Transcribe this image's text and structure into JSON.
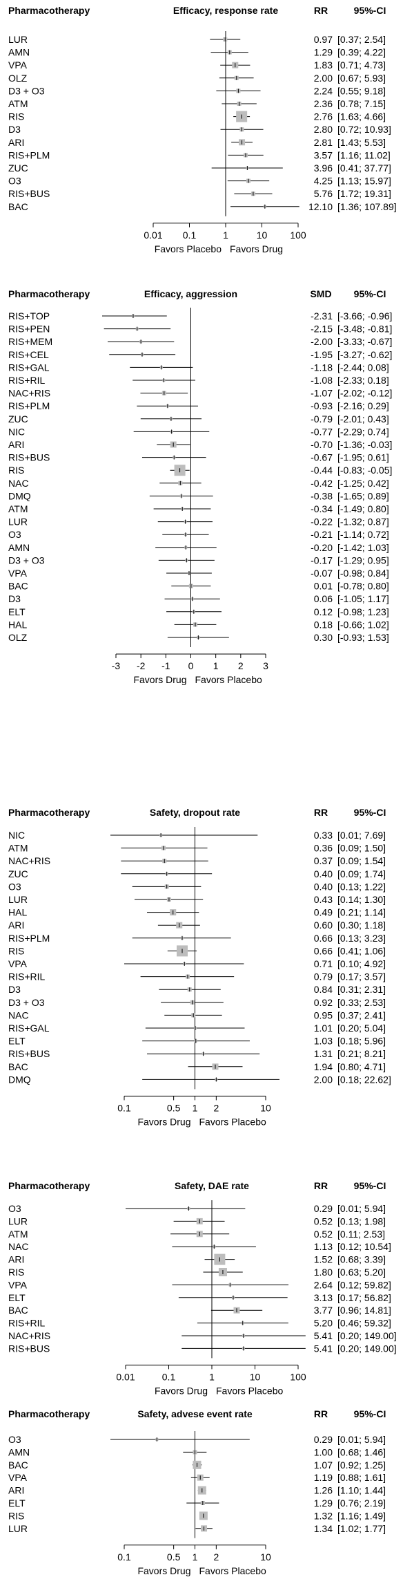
{
  "chart_data": [
    {
      "type": "forest",
      "title": "Efficacy, response rate",
      "columns": {
        "label": "Pharmacotherapy",
        "title": "Efficacy, response rate",
        "estimate": "RR",
        "ci": "95%-CI"
      },
      "scale": "log",
      "null_value": 1,
      "ticks": [
        0.01,
        0.1,
        1,
        10,
        100
      ],
      "tick_labels": [
        "0.01",
        "0.1",
        "1",
        "10",
        "100"
      ],
      "favors": [
        "Favors Placebo",
        "Favors Drug"
      ],
      "rows": [
        {
          "label": "LUR",
          "est": 0.97,
          "lo": 0.37,
          "hi": 2.54,
          "est_text": "0.97",
          "ci_text": "[0.37;  2.54]",
          "w": 1
        },
        {
          "label": "AMN",
          "est": 1.29,
          "lo": 0.39,
          "hi": 4.22,
          "est_text": "1.29",
          "ci_text": "[0.39;  4.22]",
          "w": 1
        },
        {
          "label": "VPA",
          "est": 1.83,
          "lo": 0.71,
          "hi": 4.73,
          "est_text": "1.83",
          "ci_text": "[0.71;  4.73]",
          "w": 2
        },
        {
          "label": "OLZ",
          "est": 2.0,
          "lo": 0.67,
          "hi": 5.93,
          "est_text": "2.00",
          "ci_text": "[0.67;  5.93]",
          "w": 1
        },
        {
          "label": "D3 + O3",
          "est": 2.24,
          "lo": 0.55,
          "hi": 9.18,
          "est_text": "2.24",
          "ci_text": "[0.55;  9.18]",
          "w": 1
        },
        {
          "label": "ATM",
          "est": 2.36,
          "lo": 0.78,
          "hi": 7.15,
          "est_text": "2.36",
          "ci_text": "[0.78;  7.15]",
          "w": 1
        },
        {
          "label": "RIS",
          "est": 2.76,
          "lo": 1.63,
          "hi": 4.66,
          "est_text": "2.76",
          "ci_text": "[1.63;  4.66]",
          "w": 4
        },
        {
          "label": "D3",
          "est": 2.8,
          "lo": 0.72,
          "hi": 10.93,
          "est_text": "2.80",
          "ci_text": "[0.72; 10.93]",
          "w": 1
        },
        {
          "label": "ARI",
          "est": 2.81,
          "lo": 1.43,
          "hi": 5.53,
          "est_text": "2.81",
          "ci_text": "[1.43;  5.53]",
          "w": 2
        },
        {
          "label": "RIS+PLM",
          "est": 3.57,
          "lo": 1.16,
          "hi": 11.02,
          "est_text": "3.57",
          "ci_text": "[1.16; 11.02]",
          "w": 1
        },
        {
          "label": "ZUC",
          "est": 3.96,
          "lo": 0.41,
          "hi": 37.77,
          "est_text": "3.96",
          "ci_text": "[0.41; 37.77]",
          "w": 0
        },
        {
          "label": "O3",
          "est": 4.25,
          "lo": 1.13,
          "hi": 15.97,
          "est_text": "4.25",
          "ci_text": "[1.13; 15.97]",
          "w": 1
        },
        {
          "label": "RIS+BUS",
          "est": 5.76,
          "lo": 1.72,
          "hi": 19.31,
          "est_text": "5.76",
          "ci_text": "[1.72; 19.31]",
          "w": 1
        },
        {
          "label": "BAC",
          "est": 12.1,
          "lo": 1.36,
          "hi": 107.89,
          "est_text": "12.10",
          "ci_text": "[1.36; 107.89]",
          "w": 0
        }
      ]
    },
    {
      "type": "forest",
      "title": "Efficacy, aggression",
      "columns": {
        "label": "Pharmacotherapy",
        "title": "Efficacy, aggression",
        "estimate": "SMD",
        "ci": "95%-CI"
      },
      "scale": "linear",
      "null_value": 0,
      "ticks": [
        -3,
        -2,
        -1,
        0,
        1,
        2,
        3
      ],
      "tick_labels": [
        "-3",
        "-2",
        "-1",
        "0",
        "1",
        "2",
        "3"
      ],
      "favors": [
        "Favors Drug",
        "Favors Placebo"
      ],
      "rows": [
        {
          "label": "RIS+TOP",
          "est": -2.31,
          "lo": -3.66,
          "hi": -0.96,
          "est_text": "-2.31",
          "ci_text": "[-3.66; -0.96]",
          "w": 0
        },
        {
          "label": "RIS+PEN",
          "est": -2.15,
          "lo": -3.48,
          "hi": -0.81,
          "est_text": "-2.15",
          "ci_text": "[-3.48; -0.81]",
          "w": 0
        },
        {
          "label": "RIS+MEM",
          "est": -2.0,
          "lo": -3.33,
          "hi": -0.67,
          "est_text": "-2.00",
          "ci_text": "[-3.33; -0.67]",
          "w": 0
        },
        {
          "label": "RIS+CEL",
          "est": -1.95,
          "lo": -3.27,
          "hi": -0.62,
          "est_text": "-1.95",
          "ci_text": "[-3.27; -0.62]",
          "w": 0
        },
        {
          "label": "RIS+GAL",
          "est": -1.18,
          "lo": -2.44,
          "hi": 0.08,
          "est_text": "-1.18",
          "ci_text": "[-2.44;  0.08]",
          "w": 0
        },
        {
          "label": "RIS+RIL",
          "est": -1.08,
          "lo": -2.33,
          "hi": 0.18,
          "est_text": "-1.08",
          "ci_text": "[-2.33;  0.18]",
          "w": 0
        },
        {
          "label": "NAC+RIS",
          "est": -1.07,
          "lo": -2.02,
          "hi": -0.12,
          "est_text": "-1.07",
          "ci_text": "[-2.02; -0.12]",
          "w": 1
        },
        {
          "label": "RIS+PLM",
          "est": -0.93,
          "lo": -2.16,
          "hi": 0.29,
          "est_text": "-0.93",
          "ci_text": "[-2.16;  0.29]",
          "w": 0
        },
        {
          "label": "ZUC",
          "est": -0.79,
          "lo": -2.01,
          "hi": 0.43,
          "est_text": "-0.79",
          "ci_text": "[-2.01;  0.43]",
          "w": 0
        },
        {
          "label": "NIC",
          "est": -0.77,
          "lo": -2.29,
          "hi": 0.74,
          "est_text": "-0.77",
          "ci_text": "[-2.29;  0.74]",
          "w": 0
        },
        {
          "label": "ARI",
          "est": -0.7,
          "lo": -1.36,
          "hi": -0.03,
          "est_text": "-0.70",
          "ci_text": "[-1.36; -0.03]",
          "w": 2
        },
        {
          "label": "RIS+BUS",
          "est": -0.67,
          "lo": -1.95,
          "hi": 0.61,
          "est_text": "-0.67",
          "ci_text": "[-1.95;  0.61]",
          "w": 0
        },
        {
          "label": "RIS",
          "est": -0.44,
          "lo": -0.83,
          "hi": -0.05,
          "est_text": "-0.44",
          "ci_text": "[-0.83; -0.05]",
          "w": 4
        },
        {
          "label": "NAC",
          "est": -0.42,
          "lo": -1.25,
          "hi": 0.42,
          "est_text": "-0.42",
          "ci_text": "[-1.25;  0.42]",
          "w": 1
        },
        {
          "label": "DMQ",
          "est": -0.38,
          "lo": -1.65,
          "hi": 0.89,
          "est_text": "-0.38",
          "ci_text": "[-1.65;  0.89]",
          "w": 0
        },
        {
          "label": "ATM",
          "est": -0.34,
          "lo": -1.49,
          "hi": 0.8,
          "est_text": "-0.34",
          "ci_text": "[-1.49;  0.80]",
          "w": 0
        },
        {
          "label": "LUR",
          "est": -0.22,
          "lo": -1.32,
          "hi": 0.87,
          "est_text": "-0.22",
          "ci_text": "[-1.32;  0.87]",
          "w": 0
        },
        {
          "label": "O3",
          "est": -0.21,
          "lo": -1.14,
          "hi": 0.72,
          "est_text": "-0.21",
          "ci_text": "[-1.14;  0.72]",
          "w": 0
        },
        {
          "label": "AMN",
          "est": -0.2,
          "lo": -1.42,
          "hi": 1.03,
          "est_text": "-0.20",
          "ci_text": "[-1.42;  1.03]",
          "w": 0
        },
        {
          "label": "D3 + O3",
          "est": -0.17,
          "lo": -1.29,
          "hi": 0.95,
          "est_text": "-0.17",
          "ci_text": "[-1.29;  0.95]",
          "w": 0
        },
        {
          "label": "VPA",
          "est": -0.07,
          "lo": -0.98,
          "hi": 0.84,
          "est_text": "-0.07",
          "ci_text": "[-0.98;  0.84]",
          "w": 0
        },
        {
          "label": "BAC",
          "est": 0.01,
          "lo": -0.78,
          "hi": 0.8,
          "est_text": "0.01",
          "ci_text": "[-0.78;  0.80]",
          "w": 1
        },
        {
          "label": "D3",
          "est": 0.06,
          "lo": -1.05,
          "hi": 1.17,
          "est_text": "0.06",
          "ci_text": "[-1.05;  1.17]",
          "w": 0
        },
        {
          "label": "ELT",
          "est": 0.12,
          "lo": -0.98,
          "hi": 1.23,
          "est_text": "0.12",
          "ci_text": "[-0.98;  1.23]",
          "w": 0
        },
        {
          "label": "HAL",
          "est": 0.18,
          "lo": -0.66,
          "hi": 1.02,
          "est_text": "0.18",
          "ci_text": "[-0.66;  1.02]",
          "w": 1
        },
        {
          "label": "OLZ",
          "est": 0.3,
          "lo": -0.93,
          "hi": 1.53,
          "est_text": "0.30",
          "ci_text": "[-0.93;  1.53]",
          "w": 0
        }
      ]
    },
    {
      "type": "forest",
      "title": "Safety, dropout rate",
      "columns": {
        "label": "Pharmacotherapy",
        "title": "Safety, dropout rate",
        "estimate": "RR",
        "ci": "95%-CI"
      },
      "scale": "log",
      "null_value": 1,
      "ticks": [
        0.1,
        0.5,
        1,
        2,
        10
      ],
      "tick_labels": [
        "0.1",
        "0.5",
        "1",
        "2",
        "10"
      ],
      "favors": [
        "Favors Drug",
        "Favors Placebo"
      ],
      "rows": [
        {
          "label": "NIC",
          "est": 0.33,
          "lo": 0.01,
          "hi": 7.69,
          "est_text": "0.33",
          "ci_text": "[0.01;  7.69]",
          "w": 0
        },
        {
          "label": "ATM",
          "est": 0.36,
          "lo": 0.09,
          "hi": 1.5,
          "est_text": "0.36",
          "ci_text": "[0.09;  1.50]",
          "w": 1
        },
        {
          "label": "NAC+RIS",
          "est": 0.37,
          "lo": 0.09,
          "hi": 1.54,
          "est_text": "0.37",
          "ci_text": "[0.09;  1.54]",
          "w": 1
        },
        {
          "label": "ZUC",
          "est": 0.4,
          "lo": 0.09,
          "hi": 1.74,
          "est_text": "0.40",
          "ci_text": "[0.09;  1.74]",
          "w": 0
        },
        {
          "label": "O3",
          "est": 0.4,
          "lo": 0.13,
          "hi": 1.22,
          "est_text": "0.40",
          "ci_text": "[0.13;  1.22]",
          "w": 1
        },
        {
          "label": "LUR",
          "est": 0.43,
          "lo": 0.14,
          "hi": 1.3,
          "est_text": "0.43",
          "ci_text": "[0.14;  1.30]",
          "w": 1
        },
        {
          "label": "HAL",
          "est": 0.49,
          "lo": 0.21,
          "hi": 1.14,
          "est_text": "0.49",
          "ci_text": "[0.21;  1.14]",
          "w": 2
        },
        {
          "label": "ARI",
          "est": 0.6,
          "lo": 0.3,
          "hi": 1.18,
          "est_text": "0.60",
          "ci_text": "[0.30;  1.18]",
          "w": 2
        },
        {
          "label": "RIS+PLM",
          "est": 0.66,
          "lo": 0.13,
          "hi": 3.23,
          "est_text": "0.66",
          "ci_text": "[0.13;  3.23]",
          "w": 0
        },
        {
          "label": "RIS",
          "est": 0.66,
          "lo": 0.41,
          "hi": 1.06,
          "est_text": "0.66",
          "ci_text": "[0.41;  1.06]",
          "w": 4
        },
        {
          "label": "VPA",
          "est": 0.71,
          "lo": 0.1,
          "hi": 4.92,
          "est_text": "0.71",
          "ci_text": "[0.10;  4.92]",
          "w": 0
        },
        {
          "label": "RIS+RIL",
          "est": 0.79,
          "lo": 0.17,
          "hi": 3.57,
          "est_text": "0.79",
          "ci_text": "[0.17;  3.57]",
          "w": 1
        },
        {
          "label": "D3",
          "est": 0.84,
          "lo": 0.31,
          "hi": 2.31,
          "est_text": "0.84",
          "ci_text": "[0.31;  2.31]",
          "w": 1
        },
        {
          "label": "D3 + O3",
          "est": 0.92,
          "lo": 0.33,
          "hi": 2.53,
          "est_text": "0.92",
          "ci_text": "[0.33;  2.53]",
          "w": 1
        },
        {
          "label": "NAC",
          "est": 0.95,
          "lo": 0.37,
          "hi": 2.41,
          "est_text": "0.95",
          "ci_text": "[0.37;  2.41]",
          "w": 1
        },
        {
          "label": "RIS+GAL",
          "est": 1.01,
          "lo": 0.2,
          "hi": 5.04,
          "est_text": "1.01",
          "ci_text": "[0.20;  5.04]",
          "w": 0
        },
        {
          "label": "ELT",
          "est": 1.03,
          "lo": 0.18,
          "hi": 5.96,
          "est_text": "1.03",
          "ci_text": "[0.18;  5.96]",
          "w": 0
        },
        {
          "label": "RIS+BUS",
          "est": 1.31,
          "lo": 0.21,
          "hi": 8.21,
          "est_text": "1.31",
          "ci_text": "[0.21;  8.21]",
          "w": 0
        },
        {
          "label": "BAC",
          "est": 1.94,
          "lo": 0.8,
          "hi": 4.71,
          "est_text": "1.94",
          "ci_text": "[0.80;  4.71]",
          "w": 2
        },
        {
          "label": "DMQ",
          "est": 2.0,
          "lo": 0.18,
          "hi": 22.62,
          "est_text": "2.00",
          "ci_text": "[0.18; 22.62]",
          "w": 0
        }
      ]
    },
    {
      "type": "forest",
      "title": "Safety, DAE rate",
      "columns": {
        "label": "Pharmacotherapy",
        "title": "Safety, DAE rate",
        "estimate": "RR",
        "ci": "95%-CI"
      },
      "scale": "log",
      "null_value": 1,
      "ticks": [
        0.01,
        0.1,
        1,
        10,
        100
      ],
      "tick_labels": [
        "0.01",
        "0.1",
        "1",
        "10",
        "100"
      ],
      "favors": [
        "Favors Drug",
        "Favors Placebo"
      ],
      "rows": [
        {
          "label": "O3",
          "est": 0.29,
          "lo": 0.01,
          "hi": 5.94,
          "est_text": "0.29",
          "ci_text": "[0.01;   5.94]",
          "w": 0
        },
        {
          "label": "LUR",
          "est": 0.52,
          "lo": 0.13,
          "hi": 1.98,
          "est_text": "0.52",
          "ci_text": "[0.13;   1.98]",
          "w": 2
        },
        {
          "label": "ATM",
          "est": 0.52,
          "lo": 0.11,
          "hi": 2.53,
          "est_text": "0.52",
          "ci_text": "[0.11;   2.53]",
          "w": 2
        },
        {
          "label": "NAC",
          "est": 1.13,
          "lo": 0.12,
          "hi": 10.54,
          "est_text": "1.13",
          "ci_text": "[0.12;  10.54]",
          "w": 0
        },
        {
          "label": "ARI",
          "est": 1.52,
          "lo": 0.68,
          "hi": 3.39,
          "est_text": "1.52",
          "ci_text": "[0.68;   3.39]",
          "w": 4
        },
        {
          "label": "RIS",
          "est": 1.8,
          "lo": 0.63,
          "hi": 5.2,
          "est_text": "1.80",
          "ci_text": "[0.63;   5.20]",
          "w": 3
        },
        {
          "label": "VPA",
          "est": 2.64,
          "lo": 0.12,
          "hi": 59.82,
          "est_text": "2.64",
          "ci_text": "[0.12;  59.82]",
          "w": 0
        },
        {
          "label": "ELT",
          "est": 3.13,
          "lo": 0.17,
          "hi": 56.82,
          "est_text": "3.13",
          "ci_text": "[0.17;  56.82]",
          "w": 0
        },
        {
          "label": "BAC",
          "est": 3.77,
          "lo": 0.96,
          "hi": 14.81,
          "est_text": "3.77",
          "ci_text": "[0.96;  14.81]",
          "w": 2
        },
        {
          "label": "RIS+RIL",
          "est": 5.2,
          "lo": 0.46,
          "hi": 59.32,
          "est_text": "5.20",
          "ci_text": "[0.46;  59.32]",
          "w": 0
        },
        {
          "label": "NAC+RIS",
          "est": 5.41,
          "lo": 0.2,
          "hi": 149.0,
          "est_text": "5.41",
          "ci_text": "[0.20; 149.00]",
          "w": 0
        },
        {
          "label": "RIS+BUS",
          "est": 5.41,
          "lo": 0.2,
          "hi": 149.0,
          "est_text": "5.41",
          "ci_text": "[0.20; 149.00]",
          "w": 0
        }
      ]
    },
    {
      "type": "forest",
      "title": "Safety, advese event rate",
      "columns": {
        "label": "Pharmacotherapy",
        "title": "Safety, advese event rate",
        "estimate": "RR",
        "ci": "95%-CI"
      },
      "scale": "log",
      "null_value": 1,
      "ticks": [
        0.1,
        0.5,
        1,
        2,
        10
      ],
      "tick_labels": [
        "0.1",
        "0.5",
        "1",
        "2",
        "10"
      ],
      "favors": [
        "Favors Drug",
        "Favors Placebo"
      ],
      "rows": [
        {
          "label": "O3",
          "est": 0.29,
          "lo": 0.01,
          "hi": 5.94,
          "est_text": "0.29",
          "ci_text": "[0.01; 5.94]",
          "w": 0
        },
        {
          "label": "AMN",
          "est": 1.0,
          "lo": 0.68,
          "hi": 1.46,
          "est_text": "1.00",
          "ci_text": "[0.68; 1.46]",
          "w": 1
        },
        {
          "label": "BAC",
          "est": 1.07,
          "lo": 0.92,
          "hi": 1.25,
          "est_text": "1.07",
          "ci_text": "[0.92; 1.25]",
          "w": 3
        },
        {
          "label": "VPA",
          "est": 1.19,
          "lo": 0.88,
          "hi": 1.61,
          "est_text": "1.19",
          "ci_text": "[0.88; 1.61]",
          "w": 2
        },
        {
          "label": "ARI",
          "est": 1.26,
          "lo": 1.1,
          "hi": 1.44,
          "est_text": "1.26",
          "ci_text": "[1.10; 1.44]",
          "w": 3
        },
        {
          "label": "ELT",
          "est": 1.29,
          "lo": 0.76,
          "hi": 2.19,
          "est_text": "1.29",
          "ci_text": "[0.76; 2.19]",
          "w": 1
        },
        {
          "label": "RIS",
          "est": 1.32,
          "lo": 1.16,
          "hi": 1.49,
          "est_text": "1.32",
          "ci_text": "[1.16; 1.49]",
          "w": 3
        },
        {
          "label": "LUR",
          "est": 1.34,
          "lo": 1.02,
          "hi": 1.77,
          "est_text": "1.34",
          "ci_text": "[1.02; 1.77]",
          "w": 2
        }
      ]
    }
  ]
}
